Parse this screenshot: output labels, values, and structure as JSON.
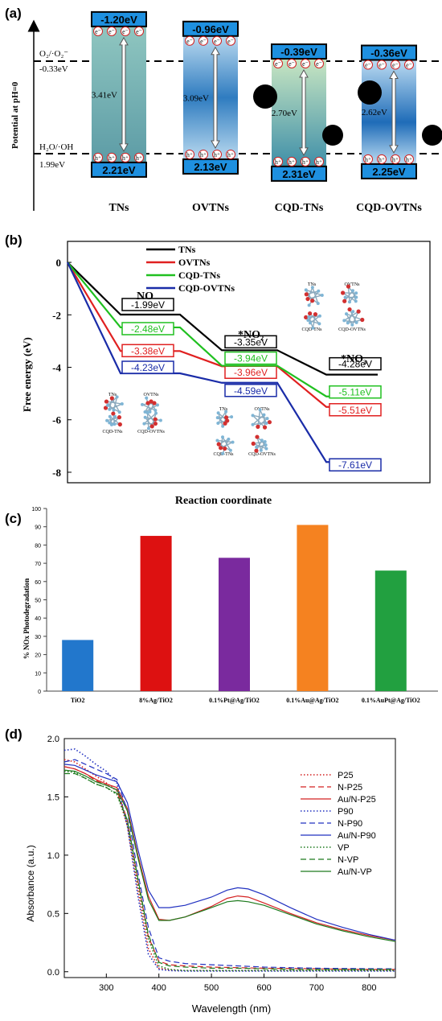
{
  "chart_data": [
    {
      "panel": "(a)",
      "type": "diagram",
      "ylabel": "Potential at pH=0",
      "reference_levels": [
        {
          "label_top": "O₂/·O₂⁻",
          "label_bottom": "-0.33eV",
          "value": -0.33
        },
        {
          "label_top": "H₂O/·OH",
          "label_bottom": "1.99eV",
          "value": 1.99
        }
      ],
      "materials": [
        {
          "name": "TNs",
          "cb": "-1.20eV",
          "vb": "2.21eV",
          "gap": "3.41eV",
          "cb_value": -1.2,
          "vb_value": 2.21
        },
        {
          "name": "OVTNs",
          "cb": "-0.96eV",
          "vb": "2.13eV",
          "gap": "3.09eV",
          "cb_value": -0.96,
          "vb_value": 2.13
        },
        {
          "name": "CQD-TNs",
          "cb": "-0.39eV",
          "vb": "2.31eV",
          "gap": "2.70eV",
          "cb_value": -0.39,
          "vb_value": 2.31
        },
        {
          "name": "CQD-OVTNs",
          "cb": "-0.36eV",
          "vb": "2.25eV",
          "gap": "2.62eV",
          "cb_value": -0.36,
          "vb_value": 2.25
        }
      ],
      "carrier_symbols": {
        "electron": "e⁻",
        "hole": "h⁺"
      }
    },
    {
      "panel": "(b)",
      "type": "line",
      "xlabel": "Reaction coordinate",
      "ylabel": "Free energy (eV)",
      "ylim": [
        -8.4,
        0.8
      ],
      "yticks": [
        0,
        -2,
        -4,
        -6,
        -8
      ],
      "steps": [
        "",
        "NO",
        "*NO₂",
        "*NO₃"
      ],
      "series": [
        {
          "name": "TNs",
          "color": "#000000",
          "values": [
            0,
            -1.99,
            -3.35,
            -4.28
          ],
          "labels": [
            "",
            "-1.99eV",
            "-3.35eV",
            "-4.28eV"
          ]
        },
        {
          "name": "OVTNs",
          "color": "#e02020",
          "values": [
            0,
            -3.38,
            -3.96,
            -5.51
          ],
          "labels": [
            "",
            "-3.38eV",
            "-3.96eV",
            "-5.51eV"
          ]
        },
        {
          "name": "CQD-TNs",
          "color": "#20c020",
          "values": [
            0,
            -2.48,
            -3.94,
            -5.11
          ],
          "labels": [
            "",
            "-2.48eV",
            "-3.94eV",
            "-5.11eV"
          ]
        },
        {
          "name": "CQD-OVTNs",
          "color": "#1a2ca8",
          "values": [
            0,
            -4.23,
            -4.59,
            -7.61
          ],
          "labels": [
            "",
            "-4.23eV",
            "-4.59eV",
            "-7.61eV"
          ]
        }
      ],
      "structure_captions": [
        "TNs",
        "OVTNs",
        "CQD-TNs",
        "CQD-OVTNs"
      ],
      "legend": "top"
    },
    {
      "panel": "(c)",
      "type": "bar",
      "ylabel": "% NOx Photodegradation",
      "ylim": [
        0,
        100
      ],
      "yticks": [
        0,
        10,
        20,
        30,
        40,
        50,
        60,
        70,
        80,
        90,
        100
      ],
      "categories": [
        "TiO2",
        "8%Ag/TiO2",
        "0.1%Pt@Ag/TiO2",
        "0.1%Au@Ag/TiO2",
        "0.1%AuPt@Ag/TiO2"
      ],
      "values": [
        28,
        85,
        73,
        91,
        66
      ],
      "colors": [
        "#2277cc",
        "#dd1111",
        "#7a2a9e",
        "#f58220",
        "#22a040"
      ]
    },
    {
      "panel": "(d)",
      "type": "line",
      "xlabel": "Wavelength (nm)",
      "ylabel": "Absorbance (a.u.)",
      "xlim": [
        220,
        850
      ],
      "ylim": [
        -0.05,
        2.0
      ],
      "xticks": [
        300,
        400,
        500,
        600,
        700,
        800
      ],
      "yticks": [
        0.0,
        0.5,
        1.0,
        1.5,
        2.0
      ],
      "legend": "top-right",
      "series": [
        {
          "name": "P25",
          "color": "#d42020",
          "dash": "dot",
          "x": [
            220,
            240,
            260,
            280,
            300,
            320,
            340,
            360,
            380,
            400,
            420,
            450,
            500,
            550,
            600,
            650,
            700,
            750,
            800,
            850
          ],
          "y": [
            1.82,
            1.8,
            1.74,
            1.68,
            1.62,
            1.55,
            1.25,
            0.7,
            0.2,
            0.03,
            0.015,
            0.01,
            0.01,
            0.01,
            0.01,
            0.01,
            0.01,
            0.01,
            0.01,
            0.01
          ]
        },
        {
          "name": "N-P25",
          "color": "#d42020",
          "dash": "dash",
          "x": [
            220,
            240,
            260,
            280,
            300,
            320,
            340,
            360,
            380,
            400,
            420,
            450,
            500,
            550,
            600,
            650,
            700,
            750,
            800,
            850
          ],
          "y": [
            1.76,
            1.74,
            1.7,
            1.64,
            1.6,
            1.56,
            1.3,
            0.78,
            0.3,
            0.09,
            0.06,
            0.05,
            0.04,
            0.035,
            0.03,
            0.028,
            0.025,
            0.022,
            0.02,
            0.02
          ]
        },
        {
          "name": "Au/N-P25",
          "color": "#d42020",
          "dash": "solid",
          "x": [
            220,
            240,
            260,
            280,
            300,
            320,
            340,
            360,
            380,
            400,
            420,
            450,
            500,
            530,
            550,
            570,
            600,
            650,
            700,
            750,
            800,
            850
          ],
          "y": [
            1.76,
            1.74,
            1.7,
            1.65,
            1.61,
            1.58,
            1.4,
            1.0,
            0.65,
            0.45,
            0.44,
            0.47,
            0.56,
            0.63,
            0.65,
            0.64,
            0.59,
            0.5,
            0.42,
            0.36,
            0.31,
            0.27
          ]
        },
        {
          "name": "P90",
          "color": "#2030c0",
          "dash": "dot",
          "x": [
            220,
            240,
            260,
            280,
            300,
            320,
            340,
            360,
            380,
            400,
            420,
            450,
            500,
            550,
            600,
            650,
            700,
            750,
            800,
            850
          ],
          "y": [
            1.9,
            1.91,
            1.85,
            1.78,
            1.72,
            1.62,
            1.25,
            0.65,
            0.15,
            0.02,
            0.01,
            0.005,
            0.005,
            0.005,
            0.005,
            0.005,
            0.005,
            0.005,
            0.005,
            0.005
          ]
        },
        {
          "name": "N-P90",
          "color": "#2030c0",
          "dash": "dash",
          "x": [
            220,
            240,
            260,
            280,
            300,
            320,
            340,
            360,
            380,
            400,
            420,
            450,
            500,
            550,
            600,
            650,
            700,
            750,
            800,
            850
          ],
          "y": [
            1.8,
            1.82,
            1.78,
            1.74,
            1.7,
            1.65,
            1.38,
            0.85,
            0.38,
            0.12,
            0.09,
            0.07,
            0.06,
            0.05,
            0.04,
            0.035,
            0.03,
            0.028,
            0.026,
            0.025
          ]
        },
        {
          "name": "Au/N-P90",
          "color": "#2030c0",
          "dash": "solid",
          "x": [
            220,
            240,
            260,
            280,
            300,
            320,
            340,
            360,
            380,
            400,
            420,
            450,
            500,
            530,
            550,
            570,
            600,
            650,
            700,
            750,
            800,
            850
          ],
          "y": [
            1.78,
            1.77,
            1.73,
            1.69,
            1.66,
            1.63,
            1.45,
            1.05,
            0.7,
            0.55,
            0.55,
            0.57,
            0.64,
            0.7,
            0.72,
            0.71,
            0.66,
            0.55,
            0.45,
            0.38,
            0.32,
            0.27
          ]
        },
        {
          "name": "VP",
          "color": "#1d7a1d",
          "dash": "dot",
          "x": [
            220,
            240,
            260,
            280,
            300,
            320,
            340,
            360,
            380,
            400,
            420,
            450,
            500,
            550,
            600,
            650,
            700,
            750,
            800,
            850
          ],
          "y": [
            1.72,
            1.71,
            1.66,
            1.61,
            1.58,
            1.52,
            1.28,
            0.76,
            0.28,
            0.05,
            0.02,
            0.01,
            0.01,
            0.01,
            0.01,
            0.01,
            0.01,
            0.01,
            0.01,
            0.01
          ]
        },
        {
          "name": "N-VP",
          "color": "#1d7a1d",
          "dash": "dash",
          "x": [
            220,
            240,
            260,
            280,
            300,
            320,
            340,
            360,
            380,
            400,
            420,
            450,
            500,
            550,
            600,
            650,
            700,
            750,
            800,
            850
          ],
          "y": [
            1.7,
            1.7,
            1.66,
            1.61,
            1.58,
            1.53,
            1.3,
            0.8,
            0.32,
            0.08,
            0.05,
            0.04,
            0.03,
            0.03,
            0.025,
            0.022,
            0.02,
            0.02,
            0.02,
            0.02
          ]
        },
        {
          "name": "Au/N-VP",
          "color": "#1d7a1d",
          "dash": "solid",
          "x": [
            220,
            240,
            260,
            280,
            300,
            320,
            340,
            360,
            380,
            400,
            420,
            450,
            500,
            530,
            550,
            570,
            600,
            650,
            700,
            750,
            800,
            850
          ],
          "y": [
            1.73,
            1.72,
            1.68,
            1.63,
            1.6,
            1.56,
            1.38,
            0.98,
            0.62,
            0.44,
            0.44,
            0.47,
            0.55,
            0.6,
            0.61,
            0.6,
            0.57,
            0.49,
            0.41,
            0.35,
            0.3,
            0.26
          ]
        }
      ]
    }
  ],
  "panel_labels": [
    "(a)",
    "(b)",
    "(c)",
    "(d)"
  ]
}
